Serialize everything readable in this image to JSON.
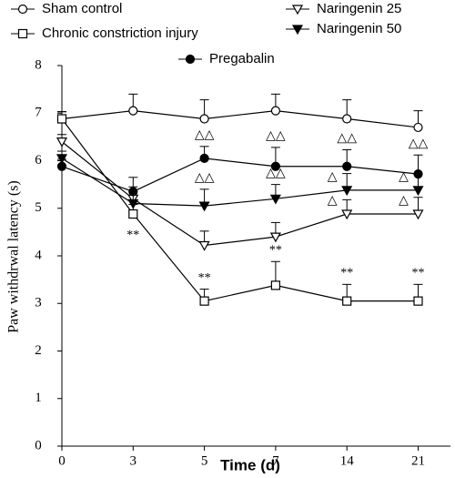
{
  "chart_data": {
    "type": "line",
    "x_label": "Time (d)",
    "y_label": "Paw withdrwal latency (s)",
    "categories": [
      "0",
      "3",
      "5",
      "7",
      "14",
      "21"
    ],
    "ylim": [
      0,
      8
    ],
    "yticks": [
      0,
      1,
      2,
      3,
      4,
      5,
      6,
      7,
      8
    ],
    "series": [
      {
        "name": "Sham control",
        "color": "#000000",
        "marker": "circle-open",
        "values": [
          6.88,
          7.05,
          6.88,
          7.05,
          6.88,
          6.7
        ],
        "errors": [
          0.15,
          0.35,
          0.4,
          0.35,
          0.4,
          0.35
        ],
        "annotations": [
          null,
          null,
          null,
          null,
          null,
          null
        ]
      },
      {
        "name": "Chronic constriction injury",
        "color": "#000000",
        "marker": "square-open",
        "values": [
          6.88,
          4.88,
          3.05,
          3.38,
          3.05,
          3.05
        ],
        "errors": [
          0.15,
          0.2,
          0.25,
          0.5,
          0.35,
          0.35
        ],
        "annotations": [
          null,
          "**",
          "**",
          "**",
          "**",
          "**"
        ]
      },
      {
        "name": "Naringenin 25",
        "color": "#000000",
        "marker": "triangle-down-open",
        "values": [
          6.4,
          5.2,
          4.22,
          4.4,
          4.88,
          4.88
        ],
        "errors": [
          0.15,
          0.25,
          0.3,
          0.3,
          0.3,
          0.35
        ],
        "annotations": [
          null,
          null,
          null,
          null,
          "△",
          "△"
        ]
      },
      {
        "name": "Naringenin 50",
        "color": "#000000",
        "marker": "triangle-down-filled",
        "values": [
          6.05,
          5.1,
          5.05,
          5.2,
          5.38,
          5.38
        ],
        "errors": [
          0.15,
          0.25,
          0.35,
          0.3,
          0.35,
          0.35
        ],
        "annotations": [
          null,
          null,
          "△△",
          "△△",
          "△",
          "△"
        ]
      },
      {
        "name": "Pregabalin",
        "color": "#000000",
        "marker": "circle-filled",
        "values": [
          5.88,
          5.35,
          6.05,
          5.88,
          5.88,
          5.72
        ],
        "errors": [
          0.15,
          0.3,
          0.25,
          0.4,
          0.35,
          0.4
        ],
        "annotations": [
          null,
          null,
          "△△",
          "△△",
          "△△",
          "△△"
        ]
      }
    ]
  }
}
